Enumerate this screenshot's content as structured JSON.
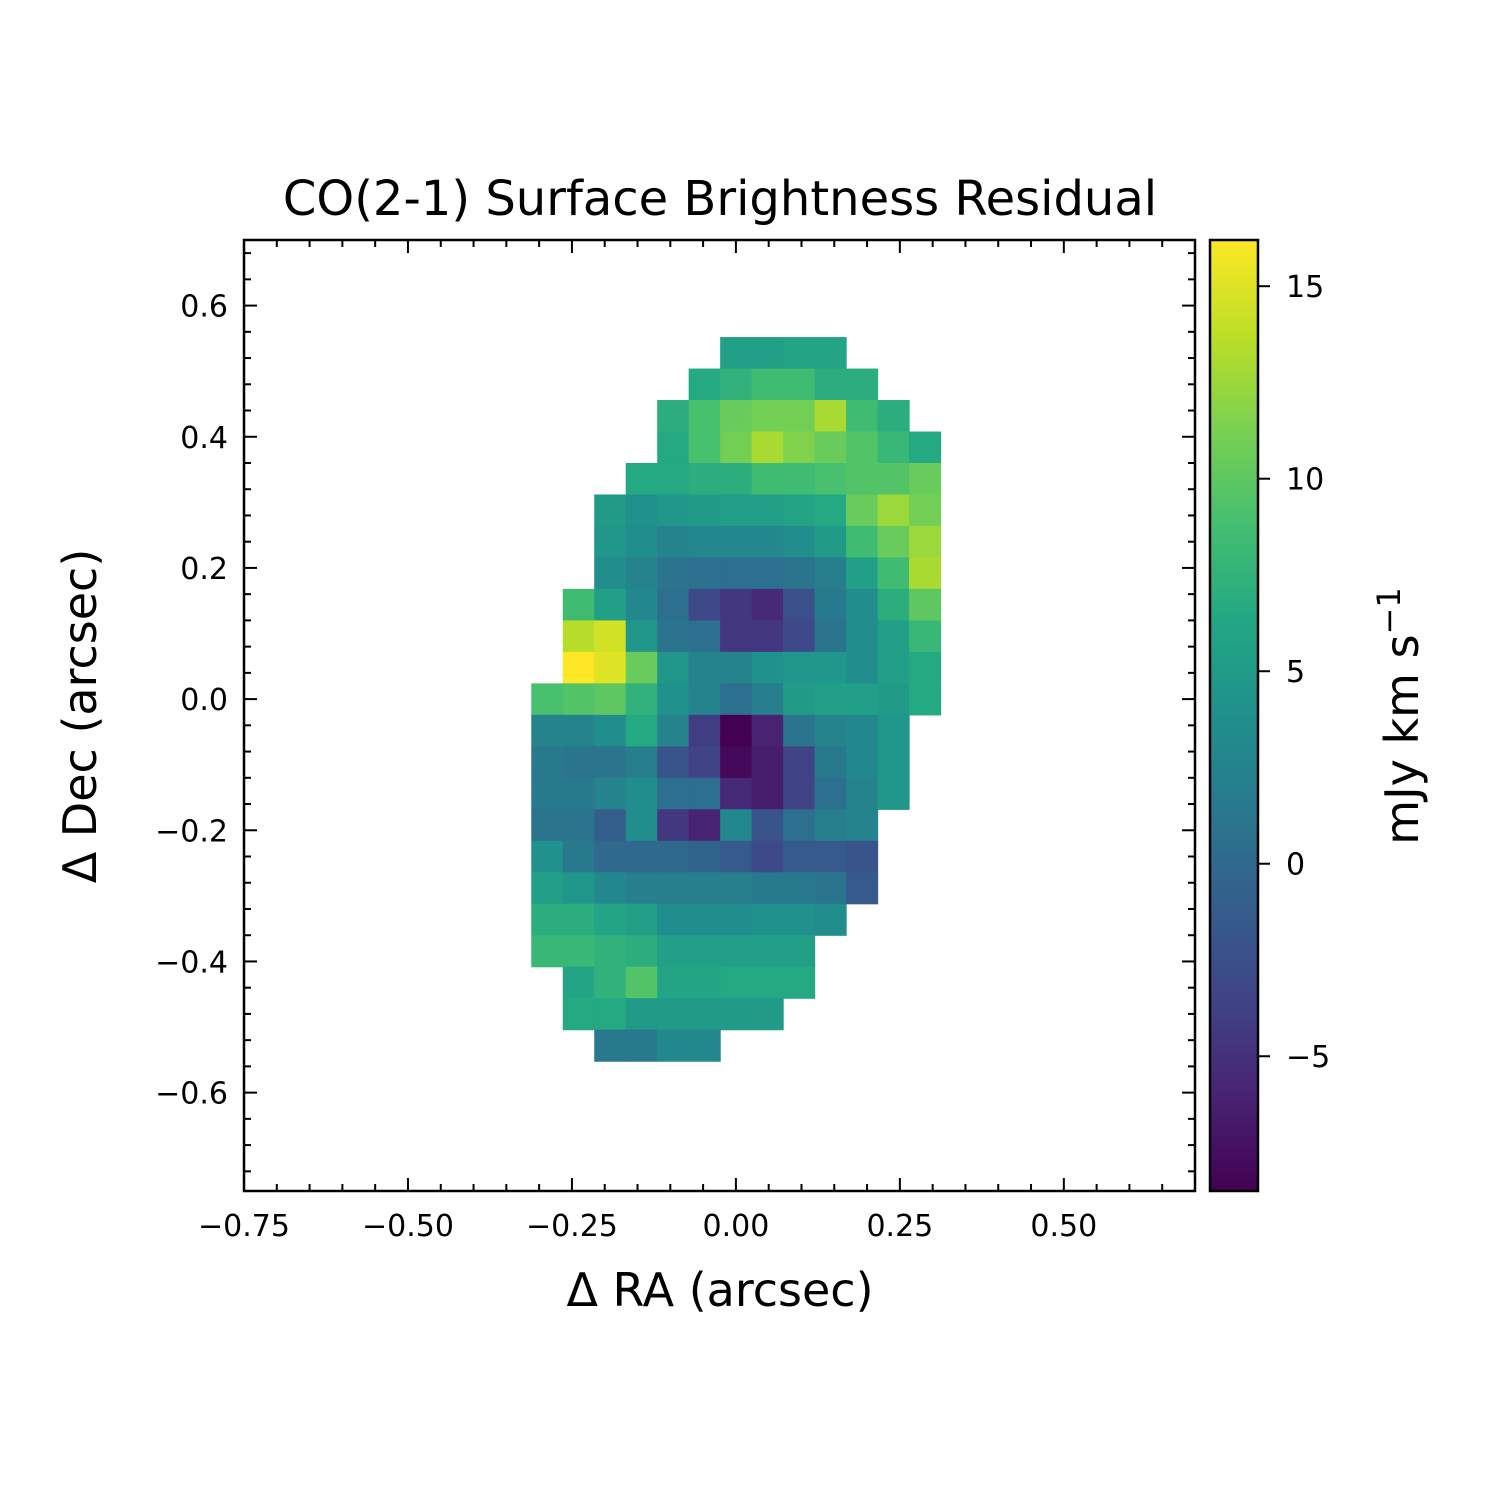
{
  "chart_data": {
    "type": "heatmap",
    "title": "CO(2-1) Surface Brightness Residual",
    "xlabel": "Δ RA (arcsec)",
    "ylabel": "Δ Dec (arcsec)",
    "colorbar_label": "mJy km s",
    "colorbar_label_exponent": "−1",
    "colormap": "viridis",
    "xlim": [
      -0.75,
      0.7
    ],
    "ylim": [
      -0.75,
      0.7
    ],
    "clim": [
      -8.5,
      16.2
    ],
    "x_ticks": [
      -0.75,
      -0.5,
      -0.25,
      0.0,
      0.25,
      0.5
    ],
    "x_tick_labels": [
      "−0.75",
      "−0.50",
      "−0.25",
      "0.00",
      "0.25",
      "0.50"
    ],
    "y_ticks": [
      -0.6,
      -0.4,
      -0.2,
      0.0,
      0.2,
      0.4,
      0.6
    ],
    "y_tick_labels": [
      "−0.6",
      "−0.4",
      "−0.2",
      "0.0",
      "0.2",
      "0.4",
      "0.6"
    ],
    "colorbar_ticks": [
      -5,
      0,
      5,
      10,
      15
    ],
    "colorbar_tick_labels": [
      "−5",
      "0",
      "5",
      "10",
      "15"
    ],
    "pixel_size_arcsec": 0.048,
    "x_centers": [
      -0.288,
      -0.24,
      -0.192,
      -0.144,
      -0.096,
      -0.048,
      0.0,
      0.048,
      0.096,
      0.144,
      0.192,
      0.24,
      0.288
    ],
    "y_centers": [
      0.528,
      0.48,
      0.432,
      0.384,
      0.336,
      0.288,
      0.24,
      0.192,
      0.144,
      0.096,
      0.048,
      0.0,
      -0.048,
      -0.096,
      -0.144,
      -0.192,
      -0.24,
      -0.288,
      -0.336,
      -0.384,
      -0.432,
      -0.48,
      -0.528
    ],
    "values": [
      [
        null,
        null,
        null,
        null,
        null,
        null,
        5.5,
        5.5,
        6.0,
        6.0,
        null,
        null,
        null
      ],
      [
        null,
        null,
        null,
        null,
        null,
        6.5,
        7.5,
        8.5,
        8.5,
        7.0,
        7.0,
        null,
        null
      ],
      [
        null,
        null,
        null,
        null,
        7.0,
        9.0,
        10.5,
        11.0,
        11.0,
        13.0,
        8.5,
        7.0,
        null
      ],
      [
        null,
        null,
        null,
        null,
        6.5,
        9.0,
        11.0,
        13.0,
        11.5,
        10.5,
        9.5,
        8.0,
        6.5
      ],
      [
        null,
        null,
        null,
        6.5,
        6.5,
        7.0,
        7.0,
        8.5,
        8.5,
        9.0,
        9.5,
        9.5,
        10.5
      ],
      [
        null,
        null,
        5.0,
        4.0,
        4.5,
        5.0,
        5.5,
        5.5,
        6.0,
        6.5,
        10.5,
        12.5,
        11.0
      ],
      [
        null,
        null,
        4.5,
        3.5,
        2.5,
        3.0,
        3.0,
        3.0,
        3.5,
        5.0,
        8.5,
        10.5,
        12.5
      ],
      [
        null,
        null,
        3.5,
        2.5,
        1.0,
        0.5,
        0.5,
        0.5,
        1.0,
        2.0,
        5.5,
        8.5,
        13.0
      ],
      [
        null,
        8.5,
        5.5,
        3.0,
        0.5,
        -3.0,
        -4.5,
        -5.5,
        -2.5,
        1.5,
        3.5,
        7.0,
        10.0
      ],
      [
        null,
        13.5,
        14.5,
        4.5,
        1.0,
        0.5,
        -4.5,
        -4.5,
        -3.0,
        1.0,
        3.5,
        5.5,
        8.0
      ],
      [
        null,
        16.2,
        15.0,
        10.5,
        4.5,
        2.5,
        2.5,
        4.0,
        4.5,
        4.5,
        3.5,
        5.5,
        6.5
      ],
      [
        9.0,
        9.5,
        10.0,
        7.5,
        4.0,
        2.5,
        0.5,
        2.0,
        5.0,
        5.5,
        5.5,
        5.0,
        6.5
      ],
      [
        2.5,
        2.5,
        3.5,
        6.5,
        2.5,
        -4.0,
        -8.5,
        -6.0,
        1.0,
        2.5,
        3.0,
        4.5,
        null
      ],
      [
        1.5,
        1.0,
        1.0,
        2.0,
        -2.0,
        -3.5,
        -8.0,
        -6.5,
        -3.5,
        1.5,
        3.0,
        4.5,
        null
      ],
      [
        1.5,
        1.5,
        2.5,
        3.5,
        0.5,
        0.5,
        -5.5,
        -6.5,
        -3.5,
        0.5,
        2.5,
        4.5,
        null
      ],
      [
        1.0,
        1.0,
        -1.0,
        3.5,
        -4.5,
        -6.0,
        3.0,
        -2.0,
        0.5,
        2.0,
        2.5,
        null,
        null
      ],
      [
        4.0,
        1.5,
        0.0,
        0.0,
        0.0,
        -0.5,
        -1.5,
        -3.0,
        -1.5,
        -1.5,
        -2.0,
        null,
        null
      ],
      [
        5.5,
        4.5,
        3.0,
        2.0,
        2.0,
        2.0,
        2.0,
        1.5,
        1.5,
        1.0,
        -1.5,
        null,
        null
      ],
      [
        7.0,
        7.0,
        6.0,
        5.5,
        3.5,
        3.5,
        3.5,
        4.0,
        4.0,
        3.5,
        null,
        null,
        null
      ],
      [
        8.0,
        8.0,
        7.5,
        7.0,
        5.5,
        5.5,
        5.5,
        5.5,
        5.5,
        null,
        null,
        null,
        null
      ],
      [
        null,
        6.0,
        7.5,
        9.5,
        6.0,
        6.0,
        6.5,
        6.5,
        6.5,
        null,
        null,
        null,
        null
      ],
      [
        null,
        6.5,
        6.5,
        5.0,
        5.0,
        5.0,
        5.0,
        5.0,
        null,
        null,
        null,
        null,
        null
      ],
      [
        null,
        null,
        1.5,
        1.5,
        3.0,
        3.0,
        null,
        null,
        null,
        null,
        null,
        null,
        null
      ]
    ]
  }
}
